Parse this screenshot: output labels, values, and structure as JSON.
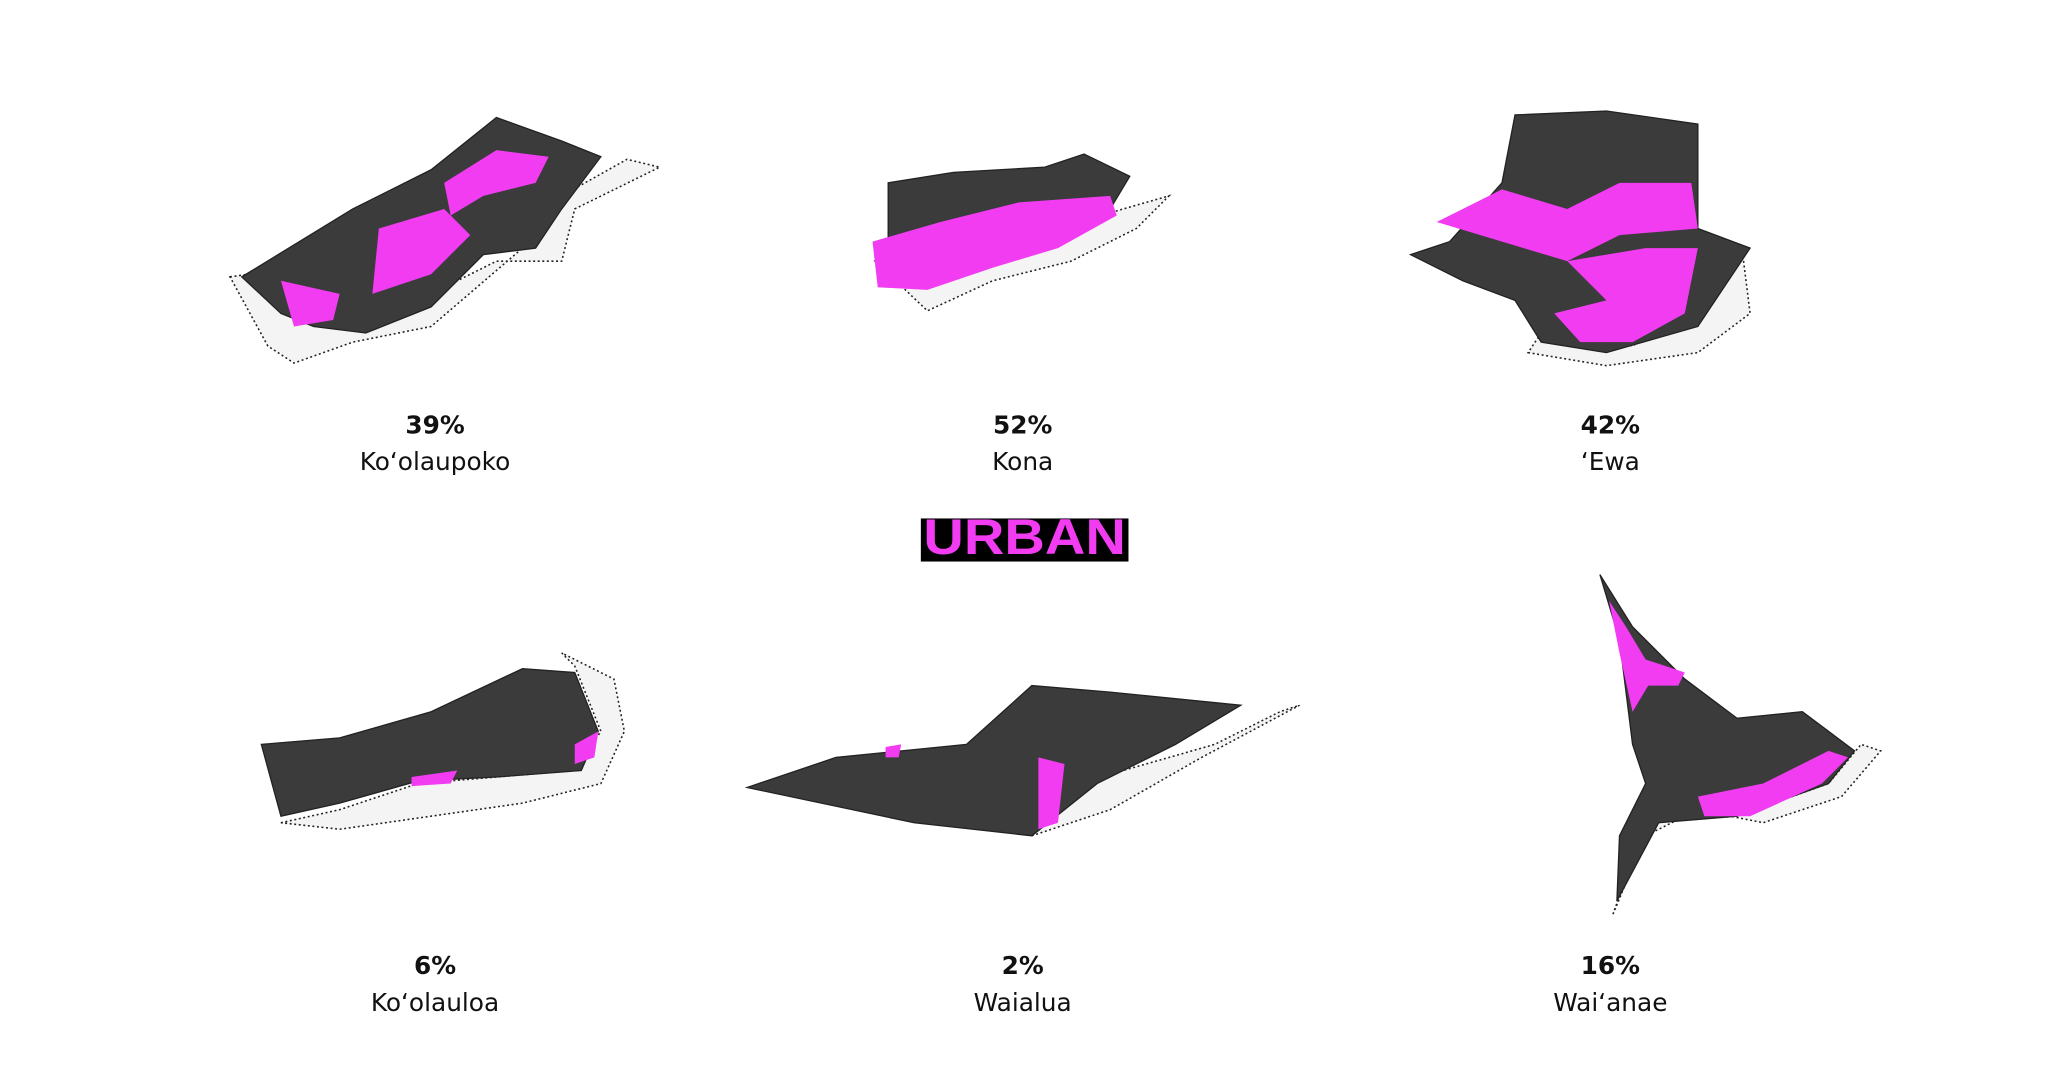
{
  "title": "URBAN",
  "districts": [
    {
      "percent": "39%",
      "name": "Koʻolaupoko"
    },
    {
      "percent": "52%",
      "name": "Kona"
    },
    {
      "percent": "42%",
      "name": "ʻEwa"
    },
    {
      "percent": "6%",
      "name": "Koʻolauloa"
    },
    {
      "percent": "2%",
      "name": "Waialua"
    },
    {
      "percent": "16%",
      "name": "Waiʻanae"
    }
  ]
}
